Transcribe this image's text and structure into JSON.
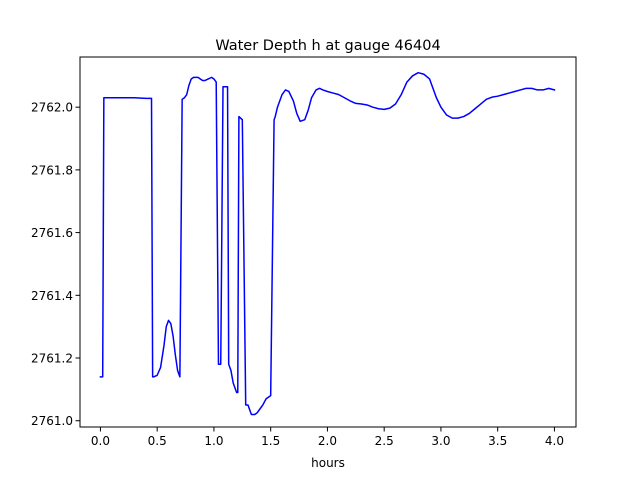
{
  "chart_data": {
    "type": "line",
    "title": "Water Depth h at gauge 46404",
    "xlabel": "hours",
    "ylabel": "",
    "xlim": [
      -0.18,
      4.19
    ],
    "ylim": [
      2760.98,
      2762.16
    ],
    "xticks": [
      0.0,
      0.5,
      1.0,
      1.5,
      2.0,
      2.5,
      3.0,
      3.5,
      4.0
    ],
    "xtick_labels": [
      "0.0",
      "0.5",
      "1.0",
      "1.5",
      "2.0",
      "2.5",
      "3.0",
      "3.5",
      "4.0"
    ],
    "yticks": [
      2761.0,
      2761.2,
      2761.4,
      2761.6,
      2761.8,
      2762.0
    ],
    "ytick_labels": [
      "2761.0",
      "2761.2",
      "2761.4",
      "2761.6",
      "2761.8",
      "2762.0"
    ],
    "grid": false,
    "series": [
      {
        "color": "#0000ff",
        "x": [
          0.0,
          0.02,
          0.03,
          0.05,
          0.1,
          0.2,
          0.3,
          0.4,
          0.45,
          0.46,
          0.47,
          0.5,
          0.53,
          0.56,
          0.58,
          0.6,
          0.62,
          0.64,
          0.66,
          0.68,
          0.7,
          0.72,
          0.74,
          0.75,
          0.76,
          0.78,
          0.8,
          0.82,
          0.84,
          0.86,
          0.88,
          0.9,
          0.92,
          0.95,
          0.98,
          1.0,
          1.02,
          1.04,
          1.06,
          1.08,
          1.1,
          1.12,
          1.13,
          1.14,
          1.15,
          1.16,
          1.17,
          1.2,
          1.21,
          1.22,
          1.25,
          1.28,
          1.3,
          1.31,
          1.32,
          1.33,
          1.34,
          1.36,
          1.38,
          1.4,
          1.43,
          1.46,
          1.5,
          1.53,
          1.54,
          1.56,
          1.6,
          1.63,
          1.66,
          1.7,
          1.73,
          1.76,
          1.8,
          1.83,
          1.86,
          1.9,
          1.93,
          1.96,
          2.0,
          2.05,
          2.1,
          2.15,
          2.2,
          2.25,
          2.3,
          2.35,
          2.4,
          2.45,
          2.5,
          2.55,
          2.6,
          2.65,
          2.7,
          2.75,
          2.8,
          2.85,
          2.9,
          2.93,
          2.96,
          3.0,
          3.05,
          3.1,
          3.15,
          3.2,
          3.25,
          3.3,
          3.35,
          3.4,
          3.45,
          3.5,
          3.55,
          3.6,
          3.65,
          3.7,
          3.75,
          3.8,
          3.85,
          3.9,
          3.95,
          4.0
        ],
        "y": [
          2761.14,
          2761.14,
          2762.03,
          2762.03,
          2762.03,
          2762.03,
          2762.03,
          2762.028,
          2762.028,
          2761.14,
          2761.14,
          2761.145,
          2761.17,
          2761.24,
          2761.3,
          2761.32,
          2761.31,
          2761.27,
          2761.21,
          2761.16,
          2761.14,
          2762.025,
          2762.03,
          2762.035,
          2762.04,
          2762.07,
          2762.09,
          2762.095,
          2762.095,
          2762.095,
          2762.09,
          2762.085,
          2762.085,
          2762.09,
          2762.095,
          2762.09,
          2762.08,
          2761.18,
          2761.18,
          2762.065,
          2762.065,
          2762.065,
          2761.18,
          2761.17,
          2761.16,
          2761.14,
          2761.12,
          2761.09,
          2761.09,
          2761.97,
          2761.96,
          2761.05,
          2761.05,
          2761.04,
          2761.03,
          2761.02,
          2761.02,
          2761.02,
          2761.025,
          2761.035,
          2761.05,
          2761.07,
          2761.08,
          2761.96,
          2761.97,
          2762.0,
          2762.04,
          2762.055,
          2762.05,
          2762.02,
          2761.98,
          2761.955,
          2761.96,
          2761.99,
          2762.03,
          2762.055,
          2762.06,
          2762.055,
          2762.05,
          2762.045,
          2762.04,
          2762.03,
          2762.02,
          2762.012,
          2762.01,
          2762.007,
          2762.0,
          2761.995,
          2761.993,
          2761.997,
          2762.01,
          2762.04,
          2762.08,
          2762.1,
          2762.11,
          2762.105,
          2762.09,
          2762.06,
          2762.03,
          2762.0,
          2761.975,
          2761.965,
          2761.965,
          2761.97,
          2761.98,
          2761.995,
          2762.01,
          2762.025,
          2762.032,
          2762.035,
          2762.04,
          2762.045,
          2762.05,
          2762.055,
          2762.06,
          2762.06,
          2762.055,
          2762.055,
          2762.06,
          2762.055
        ]
      }
    ]
  }
}
